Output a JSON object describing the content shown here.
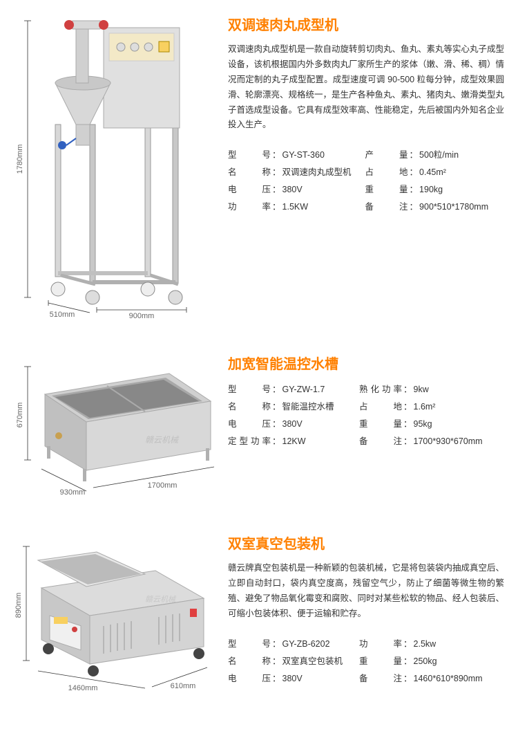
{
  "products": [
    {
      "title": "双调速肉丸成型机",
      "desc": "双调速肉丸成型机是一款自动旋转剪切肉丸、鱼丸、素丸等实心丸子成型设备，该机根据国内外多数肉丸厂家所生产的浆体（嫩、滑、稀、稠）情况而定制的丸子成型配置。成型速度可调 90-500 粒每分钟，成型效果圆滑、轮廓漂亮、规格统一，是生产各种鱼丸、素丸、猪肉丸、嫩滑类型丸子首选成型设备。它具有成型效率高、性能稳定，先后被国内外知名企业投入生产。",
      "specs_left": [
        {
          "label": "型号",
          "value": "GY-ST-360"
        },
        {
          "label": "名称",
          "value": "双调速肉丸成型机"
        },
        {
          "label": "电压",
          "value": "380V"
        },
        {
          "label": "功率",
          "value": "1.5KW"
        }
      ],
      "specs_right": [
        {
          "label": "产量",
          "value": "500粒/min"
        },
        {
          "label": "占地",
          "value": "0.45m²"
        },
        {
          "label": "重量",
          "value": "190kg"
        },
        {
          "label": "备注",
          "value": "900*510*1780mm"
        }
      ],
      "dims": {
        "h": "1780mm",
        "w": "900mm",
        "d": "510mm"
      }
    },
    {
      "title": "加宽智能温控水槽",
      "desc": "",
      "specs_left": [
        {
          "label": "型号",
          "value": "GY-ZW-1.7"
        },
        {
          "label": "名称",
          "value": "智能温控水槽"
        },
        {
          "label": "电压",
          "value": "380V"
        },
        {
          "label": "定型功率",
          "value": "12KW"
        }
      ],
      "specs_right": [
        {
          "label": "熟化功率",
          "value": "9kw"
        },
        {
          "label": "占地",
          "value": "1.6m²"
        },
        {
          "label": "重量",
          "value": "95kg"
        },
        {
          "label": "备注",
          "value": "1700*930*670mm"
        }
      ],
      "dims": {
        "h": "670mm",
        "w": "1700mm",
        "d": "930mm"
      }
    },
    {
      "title": "双室真空包装机",
      "desc": "赣云牌真空包装机是一种新颖的包装机械，它是将包装袋内抽成真空后、立即自动封口，袋内真空度高，残留空气少，防止了细菌等微生物的繁殖、避免了物品氧化霉变和腐败、同时对某些松软的物品、经人包装后、可缩小包装体积、便于运输和贮存。",
      "specs_left": [
        {
          "label": "型号",
          "value": "GY-ZB-6202"
        },
        {
          "label": "名称",
          "value": "双室真空包装机"
        },
        {
          "label": "电压",
          "value": "380V"
        }
      ],
      "specs_right": [
        {
          "label": "功率",
          "value": "2.5kw"
        },
        {
          "label": "重量",
          "value": "250kg"
        },
        {
          "label": "备注",
          "value": "1460*610*890mm"
        }
      ],
      "dims": {
        "h": "890mm",
        "w": "1460mm",
        "d": "610mm"
      }
    }
  ],
  "colors": {
    "title": "#ff8000",
    "text": "#333333",
    "machine_body": "#d8d8d8",
    "machine_dark": "#b8b8b8",
    "machine_shadow": "#a0a0a0",
    "dim_line": "#333333"
  }
}
